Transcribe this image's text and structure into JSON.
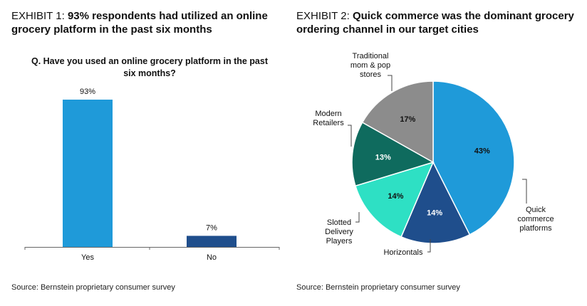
{
  "exhibit1": {
    "prefix": "EXHIBIT 1:",
    "headline": "93% respondents had utilized an online grocery platform in the past six months",
    "question": "Q. Have you used an online grocery platform in the past six months?",
    "source": "Source: Bernstein proprietary consumer survey"
  },
  "exhibit2": {
    "prefix": "EXHIBIT 2:",
    "headline": "Quick commerce was the dominant grocery ordering channel in our target cities",
    "source": "Source: Bernstein proprietary consumer survey"
  },
  "chart_data": [
    {
      "type": "bar",
      "title": "Q. Have you used an online grocery platform in the past six months?",
      "categories": [
        "Yes",
        "No"
      ],
      "values": [
        93,
        7
      ],
      "data_labels": [
        "93%",
        "7%"
      ],
      "bar_colors": [
        "#1f9ad9",
        "#1f4e8c"
      ],
      "ylim": [
        0,
        100
      ],
      "grid": false,
      "legend": "none"
    },
    {
      "type": "pie",
      "slices": [
        {
          "label": "Quick commerce platforms",
          "value": 43,
          "data_label": "43%",
          "color": "#1f9ad9",
          "label_color": "#111111"
        },
        {
          "label": "Horizontals",
          "value": 14,
          "data_label": "14%",
          "color": "#1f4e8c",
          "label_color": "#ffffff"
        },
        {
          "label": "Slotted Delivery Players",
          "value": 14,
          "data_label": "14%",
          "color": "#2ee0c4",
          "label_color": "#111111"
        },
        {
          "label": "Modern Retailers",
          "value": 13,
          "data_label": "13%",
          "color": "#0f6b5e",
          "label_color": "#ffffff"
        },
        {
          "label": "Traditional mom & pop stores",
          "value": 17,
          "data_label": "17%",
          "color": "#8c8c8c",
          "label_color": "#111111"
        }
      ],
      "start": "12 o'clock",
      "direction": "clockwise",
      "legend": "callout labels"
    }
  ]
}
